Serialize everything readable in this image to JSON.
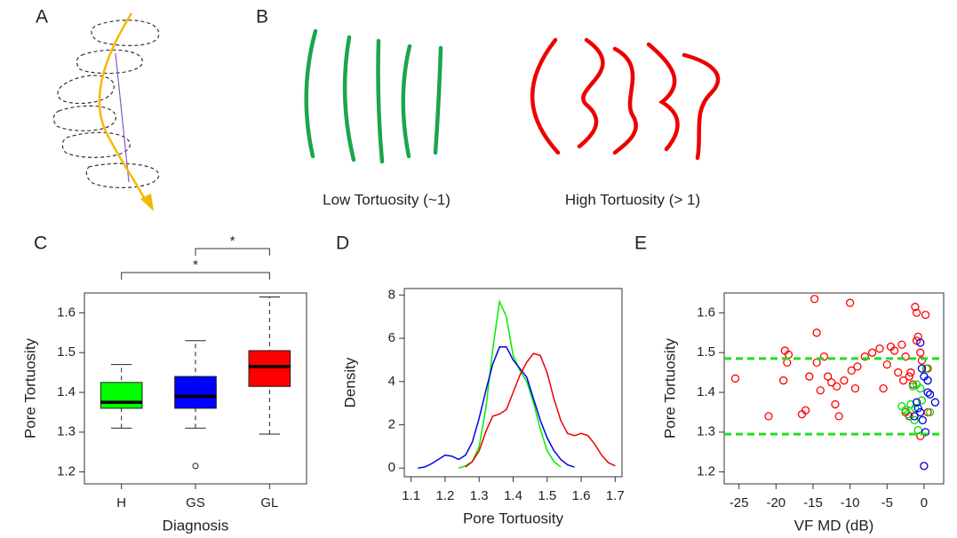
{
  "panel_letters": [
    "A",
    "B",
    "C",
    "D",
    "E"
  ],
  "panel_b": {
    "low_label": "Low Tortuosity (~1)",
    "high_label": "High Tortuosity (> 1)"
  },
  "chart_data": [
    {
      "type": "box",
      "xlabel": "Diagnosis",
      "ylabel": "Pore Tortuosity",
      "categories": [
        "H",
        "GS",
        "GL"
      ],
      "boxes": [
        {
          "color": "#00ff00",
          "low": 1.31,
          "q1": 1.36,
          "median": 1.375,
          "q3": 1.425,
          "high": 1.47,
          "outliers": []
        },
        {
          "color": "#0000ff",
          "low": 1.31,
          "q1": 1.36,
          "median": 1.39,
          "q3": 1.44,
          "high": 1.53,
          "outliers": [
            1.215
          ]
        },
        {
          "color": "#ff0000",
          "low": 1.295,
          "q1": 1.415,
          "median": 1.465,
          "q3": 1.505,
          "high": 1.64,
          "outliers": []
        }
      ],
      "brackets": [
        {
          "label": "*",
          "between": [
            "GS",
            "GL"
          ]
        },
        {
          "label": "*",
          "between": [
            "H",
            "GL"
          ]
        }
      ],
      "ylim": [
        1.17,
        1.65
      ],
      "yticks": [
        1.2,
        1.3,
        1.4,
        1.5,
        1.6
      ]
    },
    {
      "type": "line",
      "xlabel": "Pore Tortuosity",
      "ylabel": "Density",
      "x": [
        1.12,
        1.14,
        1.16,
        1.18,
        1.2,
        1.22,
        1.24,
        1.26,
        1.28,
        1.3,
        1.32,
        1.34,
        1.36,
        1.38,
        1.4,
        1.42,
        1.44,
        1.46,
        1.48,
        1.5,
        1.52,
        1.54,
        1.56,
        1.58,
        1.6,
        1.62,
        1.64,
        1.66,
        1.68,
        1.7
      ],
      "series": [
        {
          "color": "#00ee00",
          "values": [
            null,
            null,
            null,
            null,
            null,
            null,
            0,
            0.1,
            0.3,
            1.0,
            2.8,
            5.5,
            7.7,
            7.0,
            5.2,
            4.5,
            4.0,
            3.0,
            1.8,
            0.8,
            0.3,
            0.05,
            null,
            null,
            null,
            null,
            null,
            null,
            null,
            null
          ]
        },
        {
          "color": "#0000ee",
          "values": [
            0,
            0.05,
            0.2,
            0.4,
            0.6,
            0.55,
            0.4,
            0.6,
            1.2,
            2.3,
            3.6,
            4.8,
            5.6,
            5.6,
            5.0,
            4.6,
            4.2,
            3.2,
            2.2,
            1.4,
            0.8,
            0.4,
            0.15,
            0.05,
            null,
            null,
            null,
            null,
            null,
            null
          ]
        },
        {
          "color": "#ee0000",
          "values": [
            null,
            null,
            null,
            null,
            null,
            null,
            null,
            0.05,
            0.3,
            0.8,
            1.7,
            2.4,
            2.5,
            2.7,
            3.5,
            4.3,
            4.9,
            5.3,
            5.2,
            4.4,
            3.2,
            2.2,
            1.6,
            1.5,
            1.6,
            1.5,
            1.1,
            0.6,
            0.25,
            0.1
          ]
        }
      ],
      "xlim": [
        1.08,
        1.72
      ],
      "xticks": [
        1.1,
        1.2,
        1.3,
        1.4,
        1.5,
        1.6,
        1.7
      ],
      "ylim": [
        -0.4,
        8.3
      ],
      "yticks": [
        0,
        2,
        4,
        6,
        8
      ]
    },
    {
      "type": "scatter",
      "xlabel": "VF MD (dB)",
      "ylabel": "Pore Tortuosity",
      "series": [
        {
          "color": "#ff0000",
          "x": [
            -25.5,
            -21,
            -19,
            -18.8,
            -18.3,
            -18.5,
            -16.5,
            -16,
            -15.5,
            -14.8,
            -14.5,
            -14.5,
            -14,
            -13.5,
            -13,
            -12.5,
            -12,
            -11.8,
            -11.5,
            -10.8,
            -10,
            -9.8,
            -9.3,
            -9,
            -8,
            -7,
            -6,
            -5.5,
            -5,
            -4.5,
            -4,
            -3.5,
            -3,
            -2.8,
            -2.5,
            -2,
            -1.8,
            -1.5,
            -1.2,
            -1,
            -1,
            -0.8,
            -0.5,
            -0.3,
            0.2,
            0.5,
            -2.5,
            -2,
            -0.5,
            0.5
          ],
          "values": [
            1.435,
            1.34,
            1.43,
            1.505,
            1.495,
            1.475,
            1.345,
            1.355,
            1.44,
            1.635,
            1.55,
            1.475,
            1.405,
            1.49,
            1.44,
            1.425,
            1.37,
            1.415,
            1.34,
            1.43,
            1.625,
            1.455,
            1.41,
            1.465,
            1.49,
            1.5,
            1.51,
            1.41,
            1.47,
            1.515,
            1.505,
            1.45,
            1.52,
            1.43,
            1.49,
            1.44,
            1.45,
            1.42,
            1.615,
            1.6,
            1.53,
            1.54,
            1.5,
            1.48,
            1.595,
            1.46,
            1.35,
            1.34,
            1.29,
            1.35
          ]
        },
        {
          "color": "#00dd00",
          "x": [
            -3,
            -2.5,
            -2.2,
            -1.8,
            -1.5,
            -1.2,
            -1,
            -0.5,
            -0.8,
            -0.3,
            0.3,
            0.8,
            -1.3
          ],
          "values": [
            1.365,
            1.355,
            1.345,
            1.37,
            1.415,
            1.36,
            1.42,
            1.41,
            1.305,
            1.38,
            1.46,
            1.35,
            1.33
          ]
        },
        {
          "color": "#0000dd",
          "x": [
            -0.5,
            -0.3,
            0,
            0.5,
            0.8,
            1.5,
            -1,
            -0.5,
            -0.2,
            0.2,
            0,
            0.5,
            -1.3,
            -0.8
          ],
          "values": [
            1.525,
            1.46,
            1.44,
            1.43,
            1.395,
            1.375,
            1.375,
            1.35,
            1.33,
            1.3,
            1.215,
            1.4,
            1.34,
            1.36
          ]
        }
      ],
      "reference_lines": [
        1.485,
        1.295
      ],
      "reference_color": "#22dd22",
      "xlim": [
        -27,
        2.65
      ],
      "xticks": [
        -25,
        -20,
        -15,
        -10,
        -5,
        0
      ],
      "ylim": [
        1.17,
        1.65
      ],
      "yticks": [
        1.2,
        1.3,
        1.4,
        1.5,
        1.6
      ]
    }
  ]
}
